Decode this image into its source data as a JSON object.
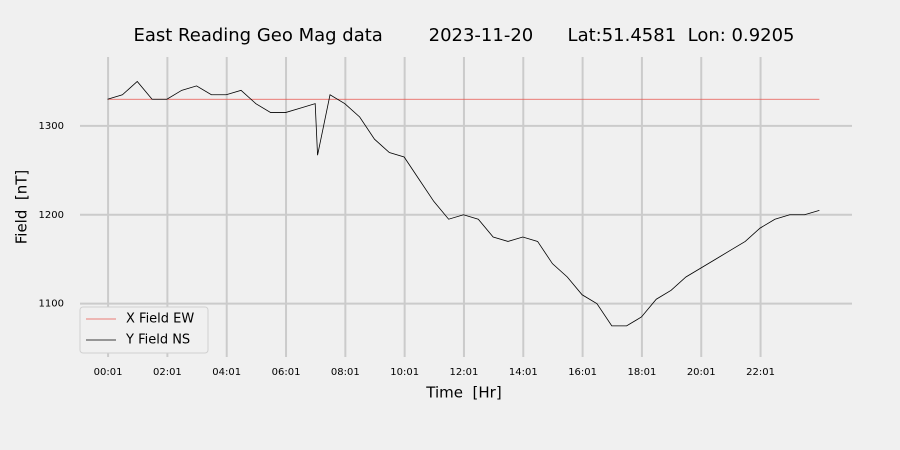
{
  "chart_data": {
    "type": "line",
    "title": "East Reading Geo Mag data        2023-11-20      Lat:51.4581  Lon: 0.9205",
    "x_label": "Time  [Hr]",
    "y_label": "Field  [nT]",
    "x": [
      0,
      0.5,
      1,
      1.5,
      2,
      2.5,
      3,
      3.5,
      4,
      4.5,
      5,
      5.5,
      6,
      6.5,
      7,
      7.08,
      7.5,
      8,
      8.5,
      9,
      9.5,
      10,
      10.5,
      11,
      11.5,
      12,
      12.5,
      13,
      13.5,
      14,
      14.5,
      15,
      15.5,
      16,
      16.5,
      17,
      17.5,
      18,
      18.5,
      19,
      19.5,
      20,
      20.5,
      21,
      21.5,
      22,
      22.5,
      23,
      23.5,
      24
    ],
    "series": [
      {
        "name": "X Field EW",
        "color": "#e8554e",
        "values": [
          1330,
          1330,
          1330,
          1330,
          1330,
          1330,
          1330,
          1330,
          1330,
          1330,
          1330,
          1330,
          1330,
          1330,
          1330,
          1330,
          1330,
          1330,
          1330,
          1330,
          1330,
          1330,
          1330,
          1330,
          1330,
          1330,
          1330,
          1330,
          1330,
          1330,
          1330,
          1330,
          1330,
          1330,
          1330,
          1330,
          1330,
          1330,
          1330,
          1330,
          1330,
          1330,
          1330,
          1330,
          1330,
          1330,
          1330,
          1330,
          1330,
          1330
        ]
      },
      {
        "name": "Y Field NS",
        "color": "#000000",
        "values": [
          1330,
          1335,
          1350,
          1330,
          1330,
          1340,
          1345,
          1335,
          1335,
          1340,
          1325,
          1315,
          1315,
          1320,
          1325,
          1267,
          1335,
          1325,
          1310,
          1285,
          1270,
          1265,
          1240,
          1215,
          1195,
          1200,
          1195,
          1175,
          1170,
          1175,
          1170,
          1145,
          1130,
          1110,
          1100,
          1075,
          1075,
          1085,
          1105,
          1115,
          1130,
          1140,
          1150,
          1160,
          1170,
          1185,
          1195,
          1200,
          1200,
          1205
        ]
      }
    ],
    "xlim": [
      -0.93,
      25.1
    ],
    "xticks": [
      {
        "value": 0.0167,
        "label": "00:01"
      },
      {
        "value": 2.0167,
        "label": "02:01"
      },
      {
        "value": 4.0167,
        "label": "04:01"
      },
      {
        "value": 6.0167,
        "label": "06:01"
      },
      {
        "value": 8.0167,
        "label": "08:01"
      },
      {
        "value": 10.0167,
        "label": "10:01"
      },
      {
        "value": 12.0167,
        "label": "12:01"
      },
      {
        "value": 14.0167,
        "label": "14:01"
      },
      {
        "value": 16.0167,
        "label": "16:01"
      },
      {
        "value": 18.0167,
        "label": "18:01"
      },
      {
        "value": 20.0167,
        "label": "20:01"
      },
      {
        "value": 22.0167,
        "label": "22:01"
      }
    ],
    "ylim": [
      1040,
      1377.5
    ],
    "yticks": [
      1100,
      1200,
      1300
    ],
    "grid": true,
    "legend": "lower left"
  }
}
